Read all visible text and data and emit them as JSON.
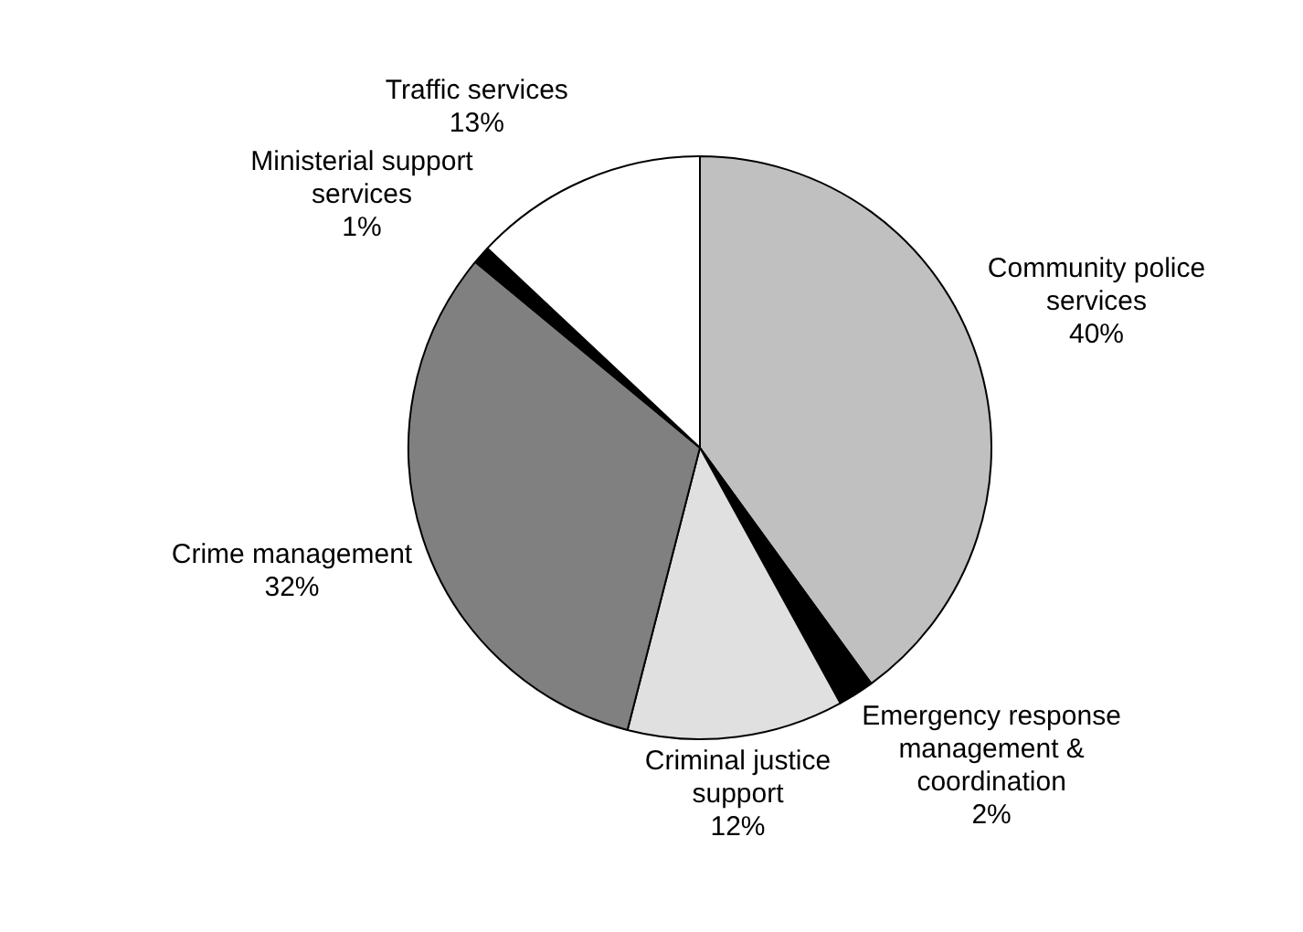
{
  "chart_data": {
    "type": "pie",
    "categories": [
      "Community police services",
      "Emergency response management & coordination",
      "Criminal justice support",
      "Crime management",
      "Ministerial support services",
      "Traffic services"
    ],
    "values": [
      40,
      2,
      12,
      32,
      1,
      13
    ],
    "value_labels": [
      "40%",
      "2%",
      "12%",
      "32%",
      "1%",
      "13%"
    ],
    "colors": [
      "#c0c0c0",
      "#000000",
      "#e0e0e0",
      "#808080",
      "#000000",
      "#ffffff"
    ]
  }
}
